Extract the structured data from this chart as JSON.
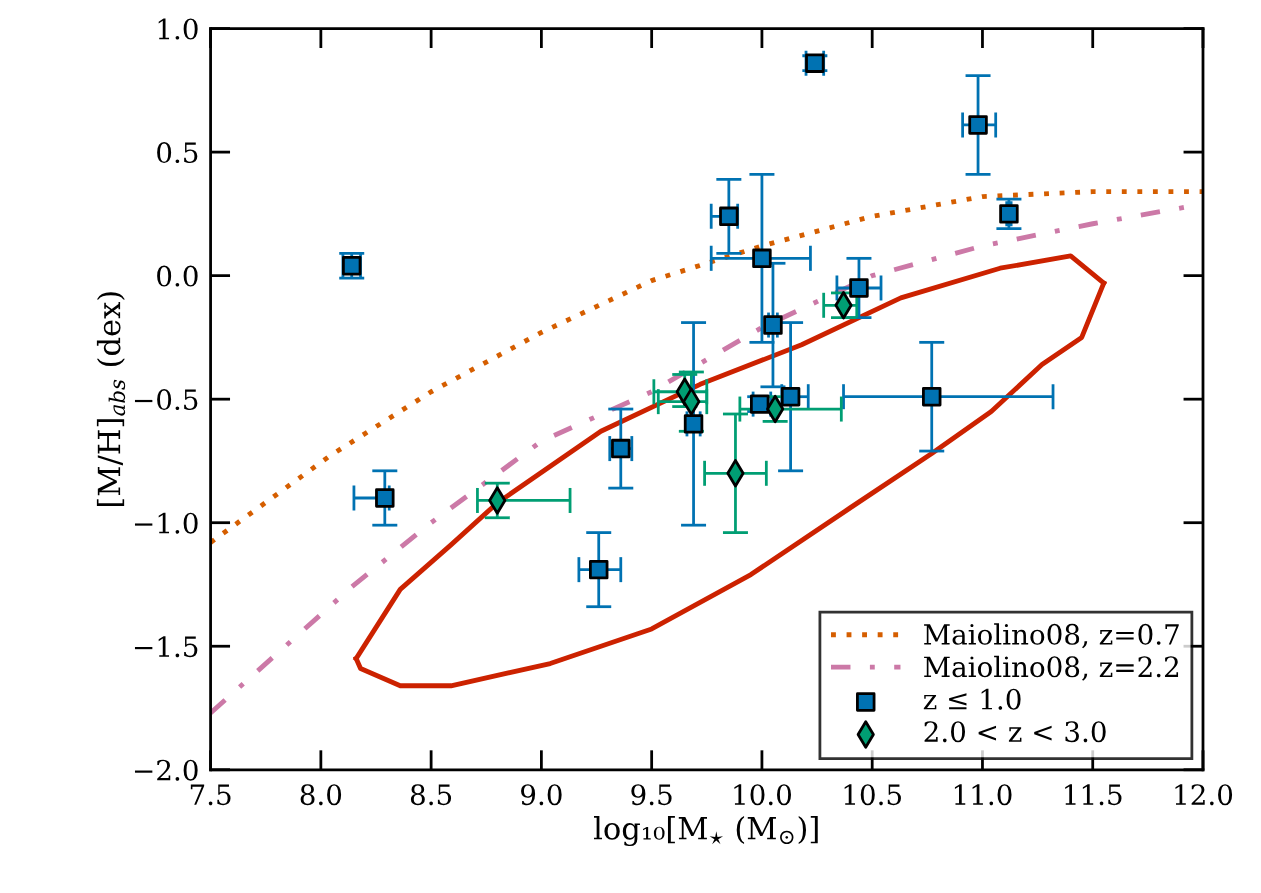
{
  "chart_data": {
    "type": "scatter",
    "xlabel": "log₁₀[M$_{⋆}$ (M$_{⊙}$)]",
    "ylabel": "[M/H]$_{abs}$ (dex)",
    "xlim": [
      7.5,
      12.0
    ],
    "ylim": [
      -2.0,
      1.0
    ],
    "xticks": [
      7.5,
      {
        "value": 8,
        "label": "8.0"
      },
      8.5,
      {
        "value": 9,
        "label": "9.0"
      },
      9.5,
      {
        "value": 10,
        "label": "10.0"
      },
      10.5,
      {
        "value": 11,
        "label": "11.0"
      },
      11.5,
      {
        "value": 12,
        "label": "12.0"
      }
    ],
    "yticks": [
      {
        "value": -2,
        "label": "−2.0"
      },
      {
        "value": -1.5,
        "label": "−1.5"
      },
      {
        "value": -1,
        "label": "−1.0"
      },
      {
        "value": -0.5,
        "label": "−0.5"
      },
      {
        "value": 0,
        "label": "0.0"
      },
      0.5,
      {
        "value": 1,
        "label": "1.0"
      }
    ],
    "grid": false,
    "legend": "bottom right",
    "series": [
      {
        "type": "line",
        "name": "Maiolino08, z=0.7",
        "color": "#d55e00",
        "line_style": "dotted",
        "marker": "none",
        "x": [
          7.5,
          8.04,
          8.5,
          9.0,
          9.5,
          10.0,
          10.5,
          11.0,
          11.5,
          12.0
        ],
        "values": [
          -1.08,
          -0.73,
          -0.47,
          -0.23,
          -0.02,
          0.12,
          0.24,
          0.32,
          0.34,
          0.34
        ]
      },
      {
        "type": "line",
        "name": "Maiolino08, z=2.2",
        "color": "#cc79a7",
        "line_style": "dashdot",
        "marker": "none",
        "x": [
          7.5,
          8.14,
          8.5,
          9.0,
          9.5,
          10.0,
          10.5,
          11.0,
          11.5,
          12.0
        ],
        "values": [
          -1.77,
          -1.26,
          -1.0,
          -0.67,
          -0.47,
          -0.21,
          0.0,
          0.12,
          0.21,
          0.29
        ]
      },
      {
        "type": "line",
        "color": "#cc2200",
        "line_style": "solid",
        "marker": "none",
        "x": [
          8.16,
          8.36,
          8.59,
          8.8,
          9.27,
          9.72,
          10.18,
          10.63,
          11.08,
          11.4,
          11.55
        ],
        "values": [
          -1.55,
          -1.27,
          -1.09,
          -0.92,
          -0.63,
          -0.44,
          -0.28,
          -0.09,
          0.03,
          0.08,
          -0.03
        ]
      },
      {
        "type": "line",
        "color": "#cc2200",
        "line_style": "solid",
        "marker": "none",
        "x": [
          8.16,
          8.18,
          8.36,
          8.59,
          9.04,
          9.5,
          9.95,
          10.4,
          10.77,
          11.04,
          11.27,
          11.45,
          11.55
        ],
        "values": [
          -1.55,
          -1.59,
          -1.66,
          -1.66,
          -1.57,
          -1.43,
          -1.21,
          -0.94,
          -0.72,
          -0.55,
          -0.36,
          -0.25,
          -0.03
        ]
      },
      {
        "name": "z ≤ 1.0",
        "color": "#0072b2",
        "marker": "square",
        "x": [
          8.14,
          8.29,
          9.36,
          9.26,
          9.69,
          9.85,
          10.0,
          10.05,
          9.99,
          10.13,
          10.77,
          10.44,
          10.24,
          10.98,
          11.12
        ],
        "values": [
          0.04,
          -0.9,
          -0.7,
          -1.19,
          -0.6,
          0.24,
          0.07,
          -0.2,
          -0.52,
          -0.49,
          -0.49,
          -0.05,
          0.86,
          0.61,
          0.25
        ],
        "errors": [
          [
            -0.01,
            0.09
          ],
          [
            -1.01,
            -0.79
          ],
          [
            -0.86,
            -0.54
          ],
          [
            -1.34,
            -1.04
          ],
          [
            -1.01,
            -0.19
          ],
          [
            0.09,
            0.39
          ],
          [
            -0.27,
            0.41
          ],
          [
            -0.45,
            0.05
          ],
          [
            -0.55,
            -0.49
          ],
          [
            -0.79,
            -0.19
          ],
          [
            -0.71,
            -0.27
          ],
          [
            -0.17,
            0.07
          ],
          [
            0.83,
            0.89
          ],
          [
            0.41,
            0.81
          ],
          [
            0.19,
            0.31
          ]
        ],
        "xerrors": [
          [
            8.1,
            8.18
          ],
          [
            8.15,
            8.31
          ],
          [
            9.31,
            9.41
          ],
          [
            9.17,
            9.36
          ],
          [
            9.66,
            9.72
          ],
          [
            9.77,
            9.89
          ],
          [
            9.77,
            10.22
          ],
          [
            10.03,
            10.07
          ],
          [
            9.96,
            10.04
          ],
          [
            10.09,
            10.21
          ],
          [
            10.37,
            11.32
          ],
          [
            10.34,
            10.54
          ],
          [
            10.2,
            10.28
          ],
          [
            10.91,
            11.06
          ],
          [
            11.11,
            11.13
          ]
        ]
      },
      {
        "name": "2.0 < z < 3.0",
        "color": "#009e73",
        "marker": "diamond",
        "x": [
          8.8,
          9.65,
          9.68,
          9.88,
          10.06,
          10.37
        ],
        "values": [
          -0.91,
          -0.47,
          -0.51,
          -0.8,
          -0.54,
          -0.12
        ],
        "errors": [
          [
            -0.98,
            -0.84
          ],
          [
            -0.53,
            -0.4
          ],
          [
            -0.63,
            -0.39
          ],
          [
            -1.04,
            -0.56
          ],
          [
            -0.59,
            -0.49
          ],
          [
            -0.17,
            -0.07
          ]
        ],
        "xerrors": [
          [
            8.71,
            9.13
          ],
          [
            9.51,
            9.75
          ],
          [
            9.53,
            9.75
          ],
          [
            9.74,
            10.02
          ],
          [
            9.9,
            10.36
          ],
          [
            10.28,
            10.43
          ]
        ]
      }
    ]
  }
}
